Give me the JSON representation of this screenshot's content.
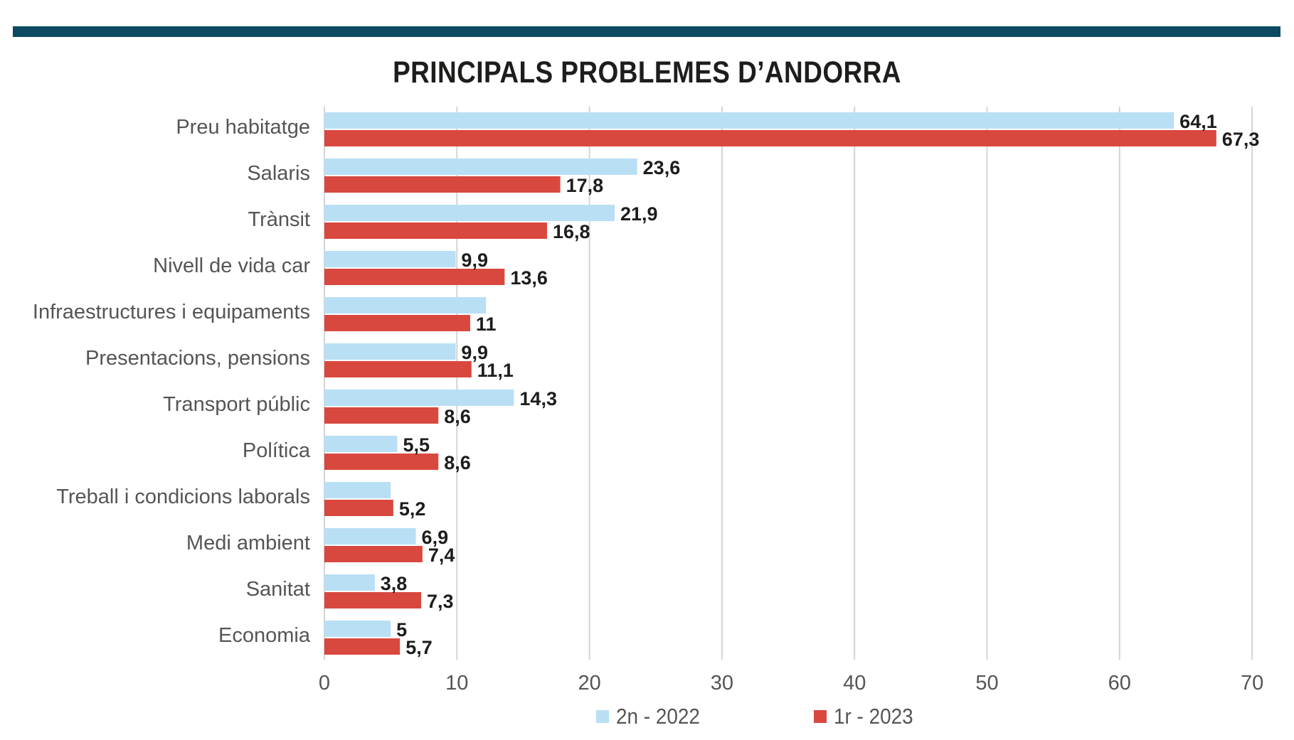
{
  "header": {
    "title": "PRINCIPALS PROBLEMES D’ANDORRA"
  },
  "colors": {
    "topbar": "#0d4a62",
    "series_2022": "#b9dff4",
    "series_2023": "#d9483f",
    "grid": "#d4d4d4",
    "label_text": "#555555",
    "value_text": "#1d1d1b"
  },
  "chart_data": {
    "type": "bar",
    "orientation": "horizontal",
    "title": "PRINCIPALS PROBLEMES D’ANDORRA",
    "categories": [
      "Preu habitatge",
      "Salaris",
      "Trànsit",
      "Nivell de vida car",
      "Infraestructures i equipaments",
      "Presentacions, pensions",
      "Transport públic",
      "Política",
      "Treball i condicions laborals",
      "Medi ambient",
      "Sanitat",
      "Economia"
    ],
    "series": [
      {
        "name": "2n - 2022",
        "values": [
          64.1,
          23.6,
          21.9,
          9.9,
          12.2,
          9.9,
          14.3,
          5.5,
          5.0,
          6.9,
          3.8,
          5
        ],
        "labels": [
          "64,1",
          "23,6",
          "21,9",
          "9,9",
          "",
          "9,9",
          "14,3",
          "5,5",
          "",
          "6,9",
          "3,8",
          "5"
        ]
      },
      {
        "name": "1r - 2023",
        "values": [
          67.3,
          17.8,
          16.8,
          13.6,
          11,
          11.1,
          8.6,
          8.6,
          5.2,
          7.4,
          7.3,
          5.7
        ],
        "labels": [
          "67,3",
          "17,8",
          "16,8",
          "13,6",
          "11",
          "11,1",
          "8,6",
          "8,6",
          "5,2",
          "7,4",
          "7,3",
          "5,7"
        ]
      }
    ],
    "xlim": [
      0,
      70
    ],
    "xticks": [
      0,
      10,
      20,
      30,
      40,
      50,
      60,
      70
    ],
    "grid": true,
    "legend_position": "bottom"
  }
}
